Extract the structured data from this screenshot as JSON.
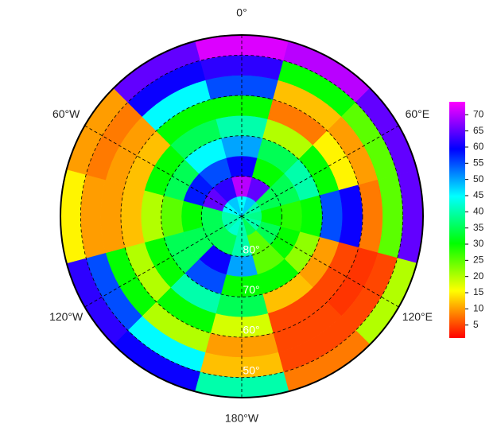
{
  "chart_data": {
    "type": "polar_heatmap",
    "ylim": [
      -90,
      -45
    ],
    "lat_bins": [
      -90,
      -85,
      -80,
      -75,
      -70,
      -65,
      -60,
      -55,
      -50,
      -45
    ],
    "lon_bins": [
      -15,
      15,
      45,
      75,
      105,
      135,
      165,
      195,
      225,
      255,
      285,
      315,
      345
    ],
    "z": [
      [
        45,
        48,
        40,
        38,
        40,
        35,
        40,
        42,
        40,
        40,
        45,
        48
      ],
      [
        70,
        65,
        35,
        30,
        35,
        25,
        40,
        35,
        35,
        35,
        65,
        62
      ],
      [
        60,
        30,
        35,
        28,
        30,
        25,
        50,
        60,
        35,
        30,
        58,
        55
      ],
      [
        50,
        35,
        40,
        30,
        22,
        30,
        30,
        55,
        35,
        25,
        35,
        45
      ],
      [
        40,
        20,
        30,
        55,
        10,
        12,
        35,
        40,
        30,
        20,
        30,
        35
      ],
      [
        30,
        8,
        15,
        60,
        5,
        5,
        18,
        30,
        20,
        12,
        12,
        30
      ],
      [
        55,
        12,
        10,
        8,
        4,
        5,
        10,
        20,
        30,
        10,
        10,
        45
      ],
      [
        62,
        30,
        25,
        25,
        5,
        5,
        12,
        45,
        55,
        10,
        8,
        60
      ],
      [
        72,
        70,
        65,
        65,
        20,
        8,
        40,
        60,
        62,
        15,
        10,
        65
      ]
    ],
    "clim": [
      1,
      74
    ],
    "colormap": [
      "#ff0000",
      "#ffff00",
      "#00ff00",
      "#00ffff",
      "#0000ff",
      "#ff00ff"
    ],
    "cbar_ticks": [
      5,
      10,
      15,
      20,
      25,
      30,
      35,
      40,
      45,
      50,
      55,
      60,
      65,
      70
    ],
    "lon_ticks": [
      {
        "value": 0,
        "label": "0°"
      },
      {
        "value": 60,
        "label": "60°E"
      },
      {
        "value": 120,
        "label": "120°E"
      },
      {
        "value": 180,
        "label": "180°W"
      },
      {
        "value": -120,
        "label": "120°W"
      },
      {
        "value": -60,
        "label": "60°W"
      }
    ],
    "lat_ticks": [
      {
        "value": -80,
        "label": "80°"
      },
      {
        "value": -70,
        "label": "70°"
      },
      {
        "value": -60,
        "label": "60°"
      },
      {
        "value": -50,
        "label": "50°"
      }
    ],
    "grid": true
  }
}
